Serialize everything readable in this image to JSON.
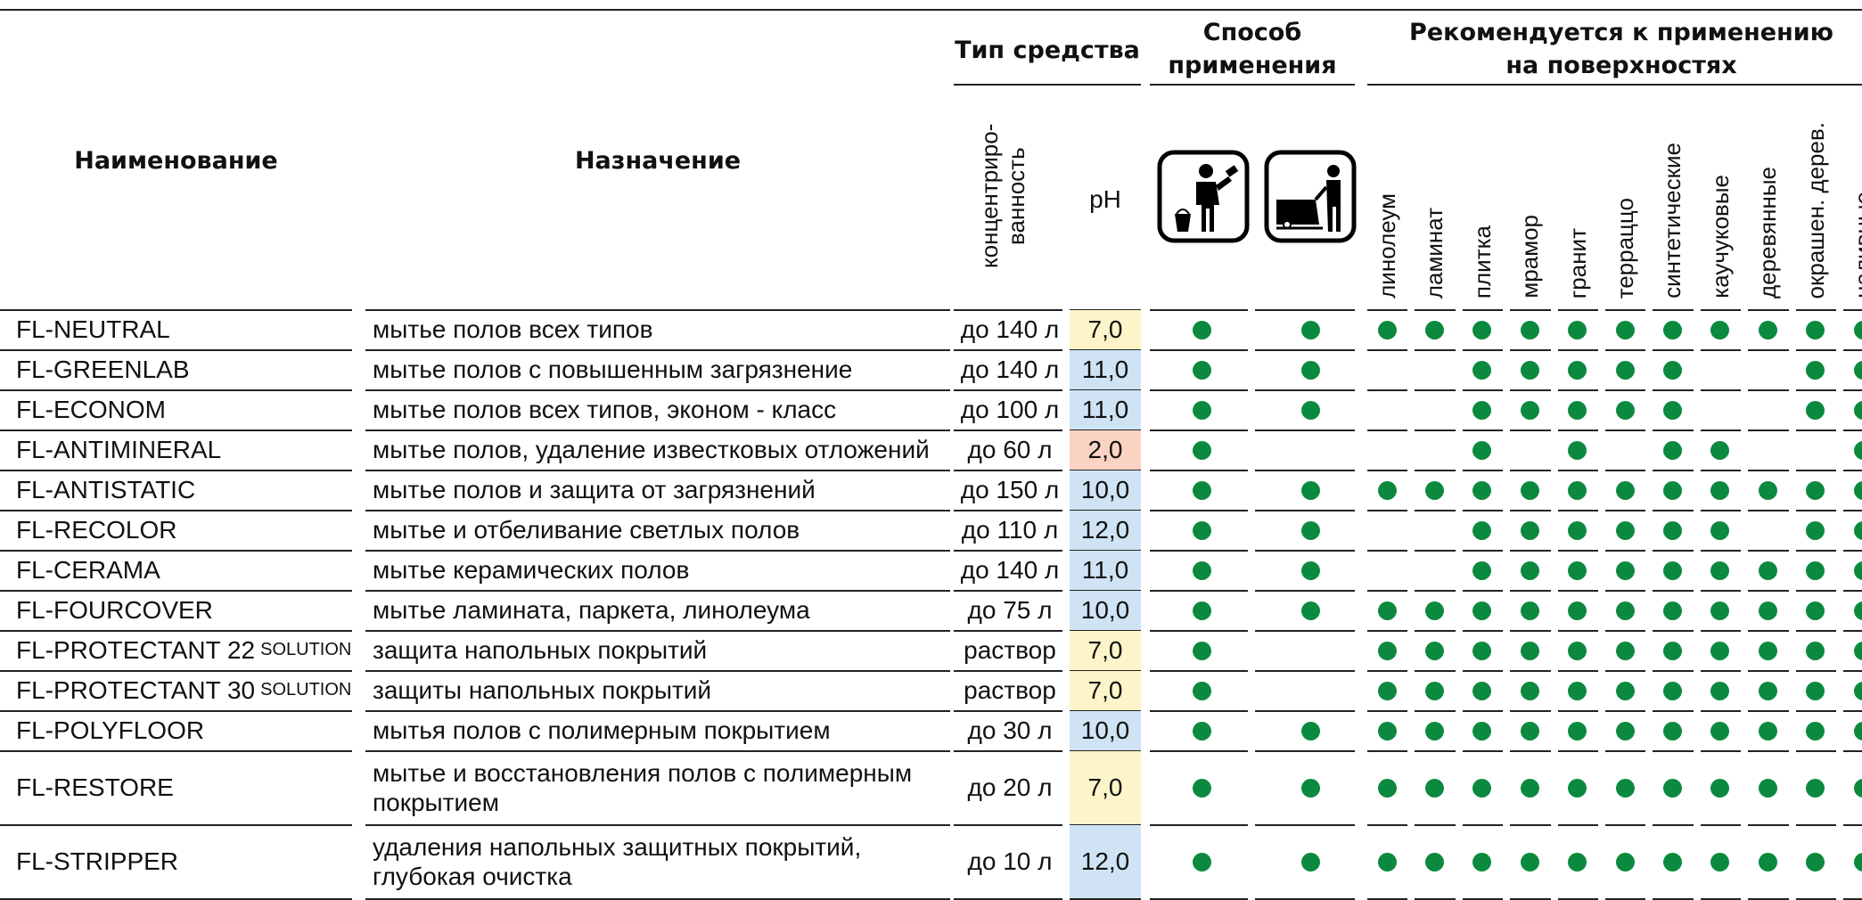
{
  "header": {
    "name": "Наименование",
    "purpose": "Назначение",
    "type": "Тип средства",
    "method": [
      "Способ",
      "применения"
    ],
    "surfaces_title": [
      "Рекомендуется к применению",
      "на поверхностях"
    ],
    "concentration": [
      "концентриро-",
      "ванность"
    ],
    "ph": "pH",
    "surfaces": [
      "линолеум",
      "ламинат",
      "плитка",
      "мрамор",
      "гранит",
      "терраццо",
      "синтетические",
      "каучуковые",
      "деревянные",
      "окрашен. дерев.",
      "наливные"
    ]
  },
  "dot_color": "#0b8a3f",
  "rows": [
    {
      "name": "FL-NEUTRAL",
      "purpose": "мытье полов всех типов",
      "concentration": "до 140 л",
      "ph": "7,0",
      "ph_color": "#fdf5c9",
      "manual": true,
      "machine": true,
      "surfaces": [
        true,
        true,
        true,
        true,
        true,
        true,
        true,
        true,
        true,
        true,
        true
      ]
    },
    {
      "name": "FL-GREENLAB",
      "purpose": "мытье полов с повышенным загрязнение",
      "concentration": "до 140 л",
      "ph": "11,0",
      "ph_color": "#cfe3f5",
      "manual": true,
      "machine": true,
      "surfaces": [
        false,
        false,
        true,
        true,
        true,
        true,
        true,
        false,
        false,
        true,
        true
      ]
    },
    {
      "name": "FL-ECONOM",
      "purpose": "мытье полов всех типов, эконом - класс",
      "concentration": "до 100 л",
      "ph": "11,0",
      "ph_color": "#cfe3f5",
      "manual": true,
      "machine": true,
      "surfaces": [
        false,
        false,
        true,
        true,
        true,
        true,
        true,
        false,
        false,
        true,
        true
      ]
    },
    {
      "name": "FL-ANTIMINERAL",
      "purpose": "мытье полов, удаление известковых отложений",
      "concentration": "до 60 л",
      "ph": "2,0",
      "ph_color": "#fbd3c3",
      "manual": true,
      "machine": false,
      "surfaces": [
        false,
        false,
        true,
        false,
        true,
        false,
        true,
        true,
        false,
        false,
        true
      ]
    },
    {
      "name": "FL-ANTISTATIC",
      "purpose": "мытье полов и защита от загрязнений",
      "concentration": "до 150 л",
      "ph": "10,0",
      "ph_color": "#cfe3f5",
      "manual": true,
      "machine": true,
      "surfaces": [
        true,
        true,
        true,
        true,
        true,
        true,
        true,
        true,
        true,
        true,
        true
      ]
    },
    {
      "name": "FL-RECOLOR",
      "purpose": "мытье и отбеливание светлых полов",
      "concentration": "до 110 л",
      "ph": "12,0",
      "ph_color": "#cfe3f5",
      "manual": true,
      "machine": true,
      "surfaces": [
        false,
        false,
        true,
        true,
        true,
        true,
        true,
        true,
        false,
        true,
        true
      ]
    },
    {
      "name": "FL-CERAMA",
      "purpose": "мытье керамических полов",
      "concentration": "до 140 л",
      "ph": "11,0",
      "ph_color": "#cfe3f5",
      "manual": true,
      "machine": true,
      "surfaces": [
        false,
        false,
        true,
        true,
        true,
        true,
        true,
        true,
        true,
        true,
        true
      ]
    },
    {
      "name": "FL-FOURCOVER",
      "purpose": "мытье ламината, паркета, линолеума",
      "concentration": "до 75 л",
      "ph": "10,0",
      "ph_color": "#cfe3f5",
      "manual": true,
      "machine": true,
      "surfaces": [
        true,
        true,
        true,
        true,
        true,
        true,
        true,
        true,
        true,
        true,
        true
      ]
    },
    {
      "name": "FL-PROTECTANT 22",
      "suffix": "SOLUTION",
      "purpose": "защита напольных покрытий",
      "concentration": "раствор",
      "ph": "7,0",
      "ph_color": "#fdf5c9",
      "manual": true,
      "machine": false,
      "surfaces": [
        true,
        true,
        true,
        true,
        true,
        true,
        true,
        true,
        true,
        true,
        true
      ]
    },
    {
      "name": "FL-PROTECTANT 30",
      "suffix": "SOLUTION",
      "purpose": "защиты напольных покрытий",
      "concentration": "раствор",
      "ph": "7,0",
      "ph_color": "#fdf5c9",
      "manual": true,
      "machine": false,
      "surfaces": [
        true,
        true,
        true,
        true,
        true,
        true,
        true,
        true,
        true,
        true,
        true
      ]
    },
    {
      "name": "FL-POLYFLOOR",
      "purpose": "мытья полов с полимерным покрытием",
      "concentration": "до 30 л",
      "ph": "10,0",
      "ph_color": "#cfe3f5",
      "manual": true,
      "machine": true,
      "surfaces": [
        true,
        true,
        true,
        true,
        true,
        true,
        true,
        true,
        true,
        true,
        true
      ]
    },
    {
      "name": "FL-RESTORE",
      "purpose": "мытье и восстановления полов с полимерным покрытием",
      "concentration": "до 20 л",
      "ph": "7,0",
      "ph_color": "#fdf5c9",
      "manual": true,
      "machine": true,
      "surfaces": [
        true,
        true,
        true,
        true,
        true,
        true,
        true,
        true,
        true,
        true,
        true
      ]
    },
    {
      "name": "FL-STRIPPER",
      "purpose": "удаления напольных защитных покрытий, глубокая очистка",
      "concentration": "до 10 л",
      "ph": "12,0",
      "ph_color": "#cfe3f5",
      "manual": true,
      "machine": true,
      "surfaces": [
        true,
        true,
        true,
        true,
        true,
        true,
        true,
        true,
        true,
        true,
        true
      ]
    }
  ]
}
